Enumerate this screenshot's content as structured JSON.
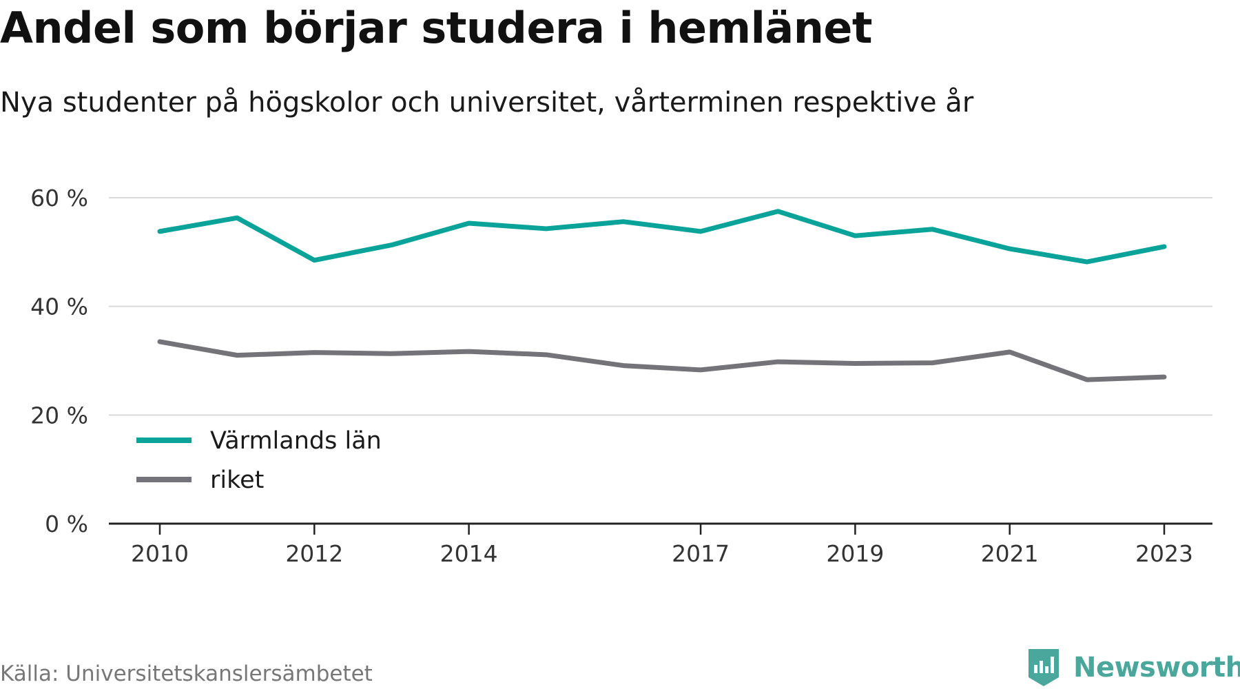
{
  "chart_data": {
    "type": "line",
    "title": "Andel som börjar studera i hemlänet",
    "subtitle": "Nya studenter på högskolor och universitet, vårterminen respektive år",
    "x": [
      2010,
      2011,
      2012,
      2013,
      2014,
      2015,
      2016,
      2017,
      2018,
      2019,
      2020,
      2021,
      2022,
      2023
    ],
    "xticks": [
      "2010",
      "2012",
      "2014",
      "2017",
      "2019",
      "2021",
      "2023"
    ],
    "yticks": [
      "0 %",
      "20 %",
      "40 %",
      "60 %"
    ],
    "ylim": [
      0,
      60
    ],
    "grid": true,
    "legend_position": "bottom-left",
    "series": [
      {
        "name": "Värmlands län",
        "color": "#0aa39a",
        "values": [
          53.8,
          56.3,
          48.5,
          51.3,
          55.3,
          54.3,
          55.6,
          53.8,
          57.5,
          53.0,
          54.2,
          50.6,
          48.2,
          51.0
        ]
      },
      {
        "name": "riket",
        "color": "#747379",
        "values": [
          33.5,
          31.0,
          31.5,
          31.3,
          31.7,
          31.1,
          29.1,
          28.3,
          29.8,
          29.5,
          29.6,
          31.6,
          26.5,
          27.0
        ]
      }
    ]
  },
  "source": "Källa: Universitetskanslersämbetet",
  "brand": "Newsworthy",
  "colors": {
    "axis": "#222222",
    "grid": "#d9d9d9",
    "brand": "#4aa79b"
  }
}
